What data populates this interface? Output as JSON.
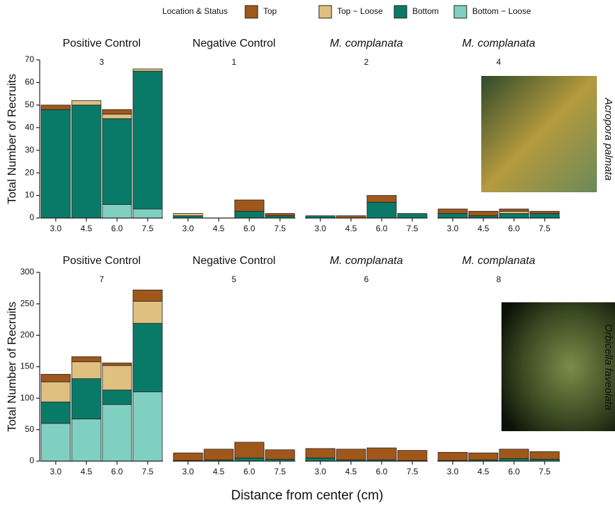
{
  "legend": {
    "title": "Location & Status",
    "series": [
      {
        "name": "Top",
        "color": "#a0581a"
      },
      {
        "name": "Top − Loose",
        "color": "#dfc07f"
      },
      {
        "name": "Bottom",
        "color": "#0a7a68"
      },
      {
        "name": "Bottom − Loose",
        "color": "#80d0c2"
      }
    ]
  },
  "x_label": "Distance from center (cm)",
  "chart_data": [
    {
      "type": "bar",
      "stacked": true,
      "title": "Positive Control",
      "subtitle": "3",
      "ylabel": "Total Number of Recruits",
      "categories": [
        "3.0",
        "4.5",
        "6.0",
        "7.5"
      ],
      "ylim": [
        0,
        70
      ],
      "yticks": [
        0,
        10,
        20,
        30,
        40,
        50,
        60,
        70
      ],
      "series": [
        {
          "values": [
            2,
            0,
            2,
            0
          ]
        },
        {
          "values": [
            0,
            2,
            2,
            1
          ]
        },
        {
          "values": [
            48,
            50,
            38,
            61
          ]
        },
        {
          "values": [
            0,
            0,
            6,
            4
          ]
        }
      ]
    },
    {
      "type": "bar",
      "stacked": true,
      "title": "Negative Control",
      "subtitle": "1",
      "categories": [
        "3.0",
        "4.5",
        "6.0",
        "7.5"
      ],
      "ylim": [
        0,
        70
      ],
      "series": [
        {
          "values": [
            0,
            0,
            5,
            1
          ]
        },
        {
          "values": [
            1,
            0,
            0,
            0
          ]
        },
        {
          "values": [
            1,
            0,
            3,
            1
          ]
        },
        {
          "values": [
            0,
            0,
            0,
            0
          ]
        }
      ]
    },
    {
      "type": "bar",
      "stacked": true,
      "title": "M. complanata",
      "title_italic": true,
      "subtitle": "2",
      "categories": [
        "3.0",
        "4.5",
        "6.0",
        "7.5"
      ],
      "ylim": [
        0,
        70
      ],
      "series": [
        {
          "values": [
            0,
            1,
            3,
            0
          ]
        },
        {
          "values": [
            0,
            0,
            0,
            0
          ]
        },
        {
          "values": [
            1,
            0,
            7,
            2
          ]
        },
        {
          "values": [
            0,
            0,
            0,
            0
          ]
        }
      ]
    },
    {
      "type": "bar",
      "stacked": true,
      "title": "M. complanata",
      "title_italic": true,
      "subtitle": "4",
      "side_label": "Acropora palmata",
      "categories": [
        "3.0",
        "4.5",
        "6.0",
        "7.5"
      ],
      "ylim": [
        0,
        70
      ],
      "series": [
        {
          "values": [
            2,
            2,
            1,
            1
          ]
        },
        {
          "values": [
            0,
            0,
            1,
            0
          ]
        },
        {
          "values": [
            2,
            1,
            2,
            2
          ]
        },
        {
          "values": [
            0,
            0,
            0,
            0
          ]
        }
      ]
    },
    {
      "type": "bar",
      "stacked": true,
      "title": "Positive Control",
      "subtitle": "7",
      "ylabel": "Total Number of Recruits",
      "categories": [
        "3.0",
        "4.5",
        "6.0",
        "7.5"
      ],
      "ylim": [
        0,
        300
      ],
      "yticks": [
        0,
        50,
        100,
        150,
        200,
        250,
        300
      ],
      "series": [
        {
          "values": [
            12,
            8,
            4,
            18
          ]
        },
        {
          "values": [
            32,
            27,
            39,
            35
          ]
        },
        {
          "values": [
            34,
            64,
            23,
            109
          ]
        },
        {
          "values": [
            60,
            67,
            90,
            110
          ]
        }
      ]
    },
    {
      "type": "bar",
      "stacked": true,
      "title": "Negative Control",
      "subtitle": "5",
      "categories": [
        "3.0",
        "4.5",
        "6.0",
        "7.5"
      ],
      "ylim": [
        0,
        300
      ],
      "series": [
        {
          "values": [
            12,
            17,
            25,
            15
          ]
        },
        {
          "values": [
            0,
            0,
            0,
            0
          ]
        },
        {
          "values": [
            1,
            2,
            5,
            3
          ]
        },
        {
          "values": [
            0,
            0,
            0,
            0
          ]
        }
      ]
    },
    {
      "type": "bar",
      "stacked": true,
      "title": "M. complanata",
      "title_italic": true,
      "subtitle": "6",
      "categories": [
        "3.0",
        "4.5",
        "6.0",
        "7.5"
      ],
      "ylim": [
        0,
        300
      ],
      "series": [
        {
          "values": [
            15,
            17,
            19,
            16
          ]
        },
        {
          "values": [
            0,
            0,
            0,
            0
          ]
        },
        {
          "values": [
            5,
            2,
            2,
            1
          ]
        },
        {
          "values": [
            0,
            0,
            0,
            0
          ]
        }
      ]
    },
    {
      "type": "bar",
      "stacked": true,
      "title": "M. complanata",
      "title_italic": true,
      "subtitle": "8",
      "side_label": "Orbicella faveolata",
      "categories": [
        "3.0",
        "4.5",
        "6.0",
        "7.5"
      ],
      "ylim": [
        0,
        300
      ],
      "series": [
        {
          "values": [
            13,
            11,
            15,
            12
          ]
        },
        {
          "values": [
            0,
            0,
            0,
            0
          ]
        },
        {
          "values": [
            1,
            2,
            4,
            3
          ]
        },
        {
          "values": [
            0,
            0,
            0,
            0
          ]
        }
      ]
    }
  ]
}
